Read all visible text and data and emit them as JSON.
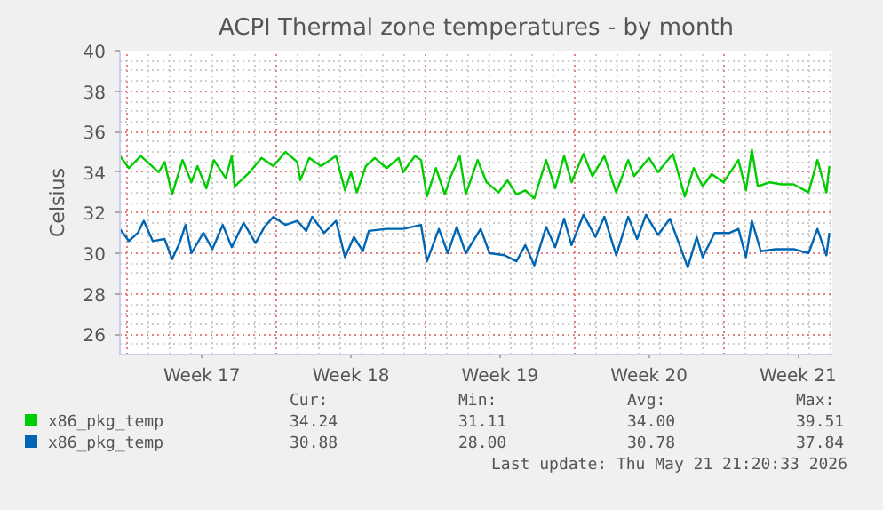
{
  "chart_data": {
    "type": "line",
    "title": "ACPI Thermal zone temperatures - by month",
    "ylabel": "Celsius",
    "xlim": [
      "2026-04-19T15:36",
      "2026-05-23T02:38"
    ],
    "ylim": [
      25,
      40
    ],
    "xticks": [
      {
        "value": "2026-04-23T12:00",
        "label": "Week 17"
      },
      {
        "value": "2026-04-30T12:00",
        "label": "Week 18"
      },
      {
        "value": "2026-05-07T12:00",
        "label": "Week 19"
      },
      {
        "value": "2026-05-14T12:00",
        "label": "Week 20"
      },
      {
        "value": "2026-05-21T12:00",
        "label": "Week 21"
      }
    ],
    "yticks": [
      26,
      28,
      30,
      32,
      34,
      36,
      38,
      40
    ],
    "grid": true,
    "legend": "bottom",
    "line_style": "solid",
    "series": [
      {
        "name": "x86_pkg_temp",
        "color": "#00cc00",
        "x": [
          "2026-04-19T15:36",
          "2026-04-20T01:41",
          "2026-04-20T15:07",
          "2026-04-21T11:17",
          "2026-04-21T18:00",
          "2026-04-22T02:24",
          "2026-04-22T14:10",
          "2026-04-23T00:14",
          "2026-04-23T06:58",
          "2026-04-23T17:02",
          "2026-04-24T01:26",
          "2026-04-24T14:53",
          "2026-04-24T21:36",
          "2026-04-25T00:58",
          "2026-04-25T17:46",
          "2026-04-26T07:12",
          "2026-04-26T20:38",
          "2026-04-27T10:05",
          "2026-04-27T23:31",
          "2026-04-28T02:53",
          "2026-04-28T12:58",
          "2026-04-29T02:24",
          "2026-04-29T19:12",
          "2026-04-30T05:17",
          "2026-04-30T12:00",
          "2026-04-30T18:43",
          "2026-05-01T04:48",
          "2026-05-01T14:53",
          "2026-05-02T04:19",
          "2026-05-02T17:46",
          "2026-05-02T22:48",
          "2026-05-03T12:14",
          "2026-05-03T18:58",
          "2026-05-04T01:41",
          "2026-05-04T11:46",
          "2026-05-04T21:50",
          "2026-05-05T04:34",
          "2026-05-05T14:38",
          "2026-05-05T21:22",
          "2026-05-06T10:48",
          "2026-05-06T20:53",
          "2026-05-07T10:19",
          "2026-05-07T20:24",
          "2026-05-08T06:29",
          "2026-05-08T16:34",
          "2026-05-09T02:38",
          "2026-05-09T16:05",
          "2026-05-10T02:10",
          "2026-05-10T12:14",
          "2026-05-10T20:38",
          "2026-05-11T10:05",
          "2026-05-11T20:10",
          "2026-05-12T09:36",
          "2026-05-12T23:02",
          "2026-05-13T12:29",
          "2026-05-13T19:12",
          "2026-05-14T12:00",
          "2026-05-14T22:05",
          "2026-05-15T14:53",
          "2026-05-16T04:19",
          "2026-05-16T14:24",
          "2026-05-17T00:29",
          "2026-05-17T10:34",
          "2026-05-18T00:00",
          "2026-05-18T16:48",
          "2026-05-19T01:12",
          "2026-05-19T07:55",
          "2026-05-19T14:38",
          "2026-05-20T04:05",
          "2026-05-20T17:31",
          "2026-05-21T06:58",
          "2026-05-21T23:46",
          "2026-05-22T09:50",
          "2026-05-22T19:55",
          "2026-05-22T23:17"
        ],
        "values": [
          34.8,
          34.2,
          34.8,
          34.0,
          34.5,
          32.9,
          34.6,
          33.5,
          34.3,
          33.2,
          34.6,
          33.7,
          34.8,
          33.3,
          34.0,
          34.7,
          34.3,
          35.0,
          34.5,
          33.6,
          34.7,
          34.3,
          34.8,
          33.1,
          34.0,
          33.0,
          34.3,
          34.7,
          34.2,
          34.7,
          34.0,
          34.8,
          34.6,
          32.8,
          34.2,
          32.9,
          33.8,
          34.8,
          32.9,
          34.6,
          33.5,
          33.0,
          33.6,
          32.9,
          33.1,
          32.7,
          34.6,
          33.2,
          34.8,
          33.5,
          34.9,
          33.8,
          34.8,
          33.0,
          34.6,
          33.8,
          34.7,
          34.0,
          34.9,
          32.8,
          34.2,
          33.3,
          33.9,
          33.5,
          34.6,
          33.1,
          35.1,
          33.3,
          33.5,
          33.4,
          33.4,
          33.0,
          34.6,
          33.0,
          34.3
        ]
      },
      {
        "name": "x86_pkg_temp",
        "color": "#0066b3",
        "x": [
          "2026-04-19T15:36",
          "2026-04-20T01:41",
          "2026-04-20T11:46",
          "2026-04-20T18:29",
          "2026-04-21T04:34",
          "2026-04-21T18:00",
          "2026-04-22T02:24",
          "2026-04-22T10:48",
          "2026-04-22T17:31",
          "2026-04-23T00:14",
          "2026-04-23T13:41",
          "2026-04-23T23:46",
          "2026-04-24T11:31",
          "2026-04-24T21:36",
          "2026-04-25T11:02",
          "2026-04-26T00:29",
          "2026-04-26T10:34",
          "2026-04-26T20:38",
          "2026-04-27T10:05",
          "2026-04-27T23:31",
          "2026-04-28T09:36",
          "2026-04-28T16:19",
          "2026-04-29T05:46",
          "2026-04-29T19:12",
          "2026-04-30T05:17",
          "2026-04-30T15:22",
          "2026-05-01T01:26",
          "2026-05-01T08:10",
          "2026-05-02T04:19",
          "2026-05-02T22:48",
          "2026-05-03T18:58",
          "2026-05-04T01:41",
          "2026-05-04T15:07",
          "2026-05-05T01:12",
          "2026-05-05T11:17",
          "2026-05-05T21:22",
          "2026-05-06T14:10",
          "2026-05-07T00:14",
          "2026-05-07T17:02",
          "2026-05-08T06:29",
          "2026-05-08T16:34",
          "2026-05-09T02:38",
          "2026-05-09T16:05",
          "2026-05-10T02:10",
          "2026-05-10T12:14",
          "2026-05-10T20:38",
          "2026-05-11T10:05",
          "2026-05-11T23:31",
          "2026-05-12T09:36",
          "2026-05-12T23:02",
          "2026-05-13T12:29",
          "2026-05-13T22:34",
          "2026-05-14T08:38",
          "2026-05-14T22:05",
          "2026-05-15T11:31",
          "2026-05-16T07:41",
          "2026-05-16T17:46",
          "2026-05-17T00:29",
          "2026-05-17T13:55",
          "2026-05-18T06:43",
          "2026-05-18T16:48",
          "2026-05-19T01:12",
          "2026-05-19T07:55",
          "2026-05-19T18:00",
          "2026-05-20T10:48",
          "2026-05-21T06:58",
          "2026-05-21T23:46",
          "2026-05-22T09:50",
          "2026-05-22T19:55",
          "2026-05-22T23:17"
        ],
        "values": [
          31.2,
          30.6,
          31.0,
          31.6,
          30.6,
          30.7,
          29.7,
          30.5,
          31.4,
          30.0,
          31.0,
          30.2,
          31.4,
          30.3,
          31.5,
          30.5,
          31.3,
          31.8,
          31.4,
          31.6,
          31.1,
          31.8,
          31.0,
          31.6,
          29.8,
          30.8,
          30.1,
          31.1,
          31.2,
          31.2,
          31.4,
          29.6,
          31.2,
          30.0,
          31.3,
          30.0,
          31.2,
          30.0,
          29.9,
          29.6,
          30.4,
          29.4,
          31.3,
          30.3,
          31.7,
          30.4,
          31.9,
          30.8,
          31.8,
          29.9,
          31.8,
          30.7,
          31.9,
          30.9,
          31.7,
          29.3,
          30.8,
          29.8,
          31.0,
          31.0,
          31.2,
          29.8,
          31.6,
          30.1,
          30.2,
          30.2,
          30.0,
          31.2,
          29.9,
          31.0
        ]
      }
    ],
    "annotations": [
      "Cur:",
      "Min:",
      "Avg:",
      "Max:",
      "34.24",
      "31.11",
      "34.00",
      "39.51",
      "30.88",
      "28.00",
      "30.78",
      "37.84",
      "Last update: Thu May 21 21:20:33 2026"
    ]
  }
}
